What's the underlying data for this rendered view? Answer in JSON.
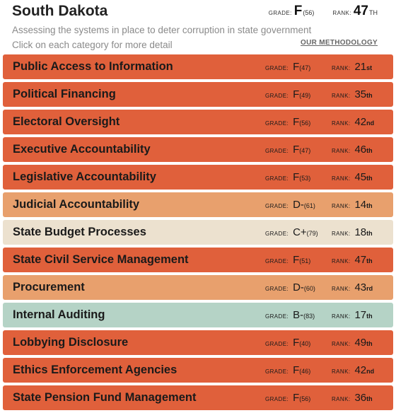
{
  "header": {
    "state": "South Dakota",
    "grade_label": "GRADE:",
    "grade": "F",
    "grade_score": "(56)",
    "rank_label": "RANK:",
    "rank": "47",
    "rank_suffix": "TH",
    "subtitle": "Assessing the systems in place to deter corruption in state government",
    "instructions": "Click on each category for more detail",
    "methodology": "OUR METHODOLOGY"
  },
  "colors": {
    "fail": "#e0603b",
    "d": "#e8a06d",
    "c": "#ece1cf",
    "b": "#b5d3c6"
  },
  "categories": [
    {
      "name": "Public Access to Information",
      "grade_label": "GRADE:",
      "grade": "F",
      "score": "(47)",
      "rank_label": "RANK:",
      "rank": "21",
      "suffix": "st",
      "tier": "fail"
    },
    {
      "name": "Political Financing",
      "grade_label": "GRADE:",
      "grade": "F",
      "score": "(49)",
      "rank_label": "RANK:",
      "rank": "35",
      "suffix": "th",
      "tier": "fail"
    },
    {
      "name": "Electoral Oversight",
      "grade_label": "GRADE:",
      "grade": "F",
      "score": "(56)",
      "rank_label": "RANK:",
      "rank": "42",
      "suffix": "nd",
      "tier": "fail"
    },
    {
      "name": "Executive Accountability",
      "grade_label": "GRADE:",
      "grade": "F",
      "score": "(47)",
      "rank_label": "RANK:",
      "rank": "46",
      "suffix": "th",
      "tier": "fail"
    },
    {
      "name": "Legislative Accountability",
      "grade_label": "GRADE:",
      "grade": "F",
      "score": "(53)",
      "rank_label": "RANK:",
      "rank": "45",
      "suffix": "th",
      "tier": "fail"
    },
    {
      "name": "Judicial Accountability",
      "grade_label": "GRADE:",
      "grade": "D-",
      "score": "(61)",
      "rank_label": "RANK:",
      "rank": "14",
      "suffix": "th",
      "tier": "d"
    },
    {
      "name": "State Budget Processes",
      "grade_label": "GRADE:",
      "grade": "C+",
      "score": "(79)",
      "rank_label": "RANK:",
      "rank": "18",
      "suffix": "th",
      "tier": "c"
    },
    {
      "name": "State Civil Service Management",
      "grade_label": "GRADE:",
      "grade": "F",
      "score": "(51)",
      "rank_label": "RANK:",
      "rank": "47",
      "suffix": "th",
      "tier": "fail"
    },
    {
      "name": "Procurement",
      "grade_label": "GRADE:",
      "grade": "D-",
      "score": "(60)",
      "rank_label": "RANK:",
      "rank": "43",
      "suffix": "rd",
      "tier": "d"
    },
    {
      "name": "Internal Auditing",
      "grade_label": "GRADE:",
      "grade": "B-",
      "score": "(83)",
      "rank_label": "RANK:",
      "rank": "17",
      "suffix": "th",
      "tier": "b"
    },
    {
      "name": "Lobbying Disclosure",
      "grade_label": "GRADE:",
      "grade": "F",
      "score": "(40)",
      "rank_label": "RANK:",
      "rank": "49",
      "suffix": "th",
      "tier": "fail"
    },
    {
      "name": "Ethics Enforcement Agencies",
      "grade_label": "GRADE:",
      "grade": "F",
      "score": "(46)",
      "rank_label": "RANK:",
      "rank": "42",
      "suffix": "nd",
      "tier": "fail"
    },
    {
      "name": "State Pension Fund Management",
      "grade_label": "GRADE:",
      "grade": "F",
      "score": "(56)",
      "rank_label": "RANK:",
      "rank": "36",
      "suffix": "th",
      "tier": "fail"
    }
  ]
}
